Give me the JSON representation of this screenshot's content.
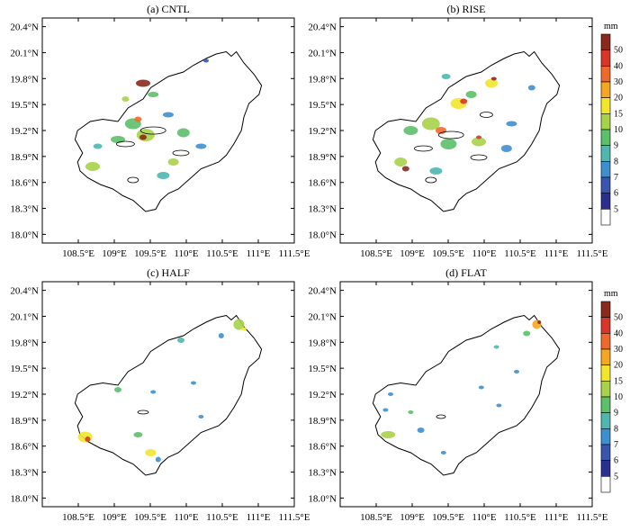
{
  "chart_data": [
    {
      "type": "heatmap",
      "title": "(a) CNTL",
      "x_ticks": [
        "108.5°E",
        "109°E",
        "109.5°E",
        "110°E",
        "110.5°E",
        "111°E",
        "111.5°E"
      ],
      "y_ticks": [
        "20.4°N",
        "20.1°N",
        "19.8°N",
        "19.5°N",
        "19.2°N",
        "18.9°N",
        "18.6°N",
        "18.3°N",
        "18.0°N"
      ],
      "xlim": [
        108.0,
        111.5
      ],
      "ylim": [
        17.9,
        20.5
      ]
    },
    {
      "type": "heatmap",
      "title": "(b) RISE",
      "x_ticks": [
        "108.5°E",
        "109°E",
        "109.5°E",
        "110°E",
        "110.5°E",
        "111°E",
        "111.5°E"
      ],
      "y_ticks": [
        "20.4°N",
        "20.1°N",
        "19.8°N",
        "19.5°N",
        "19.2°N",
        "18.9°N",
        "18.6°N",
        "18.3°N",
        "18.0°N"
      ],
      "xlim": [
        108.0,
        111.5
      ],
      "ylim": [
        17.9,
        20.5
      ]
    },
    {
      "type": "heatmap",
      "title": "(c) HALF",
      "x_ticks": [
        "108.5°E",
        "109°E",
        "109.5°E",
        "110°E",
        "110.5°E",
        "111°E",
        "111.5°E"
      ],
      "y_ticks": [
        "20.4°N",
        "20.1°N",
        "19.8°N",
        "19.5°N",
        "19.2°N",
        "18.9°N",
        "18.6°N",
        "18.3°N",
        "18.0°N"
      ],
      "xlim": [
        108.0,
        111.5
      ],
      "ylim": [
        17.9,
        20.5
      ]
    },
    {
      "type": "heatmap",
      "title": "(d) FLAT",
      "x_ticks": [
        "108.5°E",
        "109°E",
        "109.5°E",
        "110°E",
        "110.5°E",
        "111°E",
        "111.5°E"
      ],
      "y_ticks": [
        "20.4°N",
        "20.1°N",
        "19.8°N",
        "19.5°N",
        "19.2°N",
        "18.9°N",
        "18.6°N",
        "18.3°N",
        "18.0°N"
      ],
      "xlim": [
        108.0,
        111.5
      ],
      "ylim": [
        17.9,
        20.5
      ]
    }
  ],
  "colorbar": {
    "unit": "mm",
    "levels": [
      "50",
      "40",
      "30",
      "20",
      "15",
      "10",
      "9",
      "8",
      "7",
      "6",
      "5"
    ],
    "colors": [
      "#8b2a1c",
      "#d9362a",
      "#ef6a2a",
      "#f5a623",
      "#f2e62c",
      "#a8d24a",
      "#5cbf6a",
      "#4fb7b0",
      "#3e8fd0",
      "#3a55b0",
      "#2b2f8f",
      "#ffffff"
    ]
  }
}
